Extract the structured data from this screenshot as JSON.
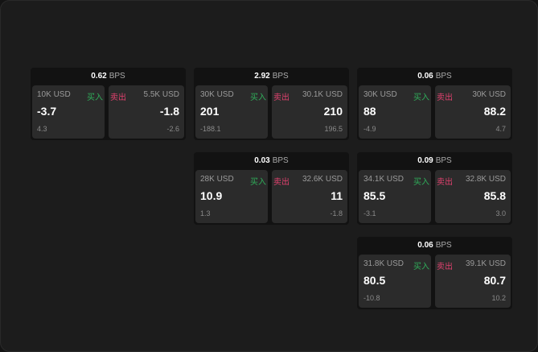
{
  "unit": "BPS",
  "buy_label": "买入",
  "sell_label": "卖出",
  "colors": {
    "buy": "#2fae5a",
    "sell": "#e0416e",
    "background": "#1c1c1c"
  },
  "cards": [
    {
      "spread": "0.62",
      "buy": {
        "qty": "10K USD",
        "price": "-3.7",
        "change": "4.3"
      },
      "sell": {
        "qty": "5.5K USD",
        "price": "-1.8",
        "change": "-2.6"
      }
    },
    {
      "spread": "2.92",
      "buy": {
        "qty": "30K USD",
        "price": "201",
        "change": "-188.1"
      },
      "sell": {
        "qty": "30.1K USD",
        "price": "210",
        "change": "196.5"
      }
    },
    {
      "spread": "0.06",
      "buy": {
        "qty": "30K USD",
        "price": "88",
        "change": "-4.9"
      },
      "sell": {
        "qty": "30K USD",
        "price": "88.2",
        "change": "4.7"
      }
    },
    {
      "spread": "0.03",
      "buy": {
        "qty": "28K USD",
        "price": "10.9",
        "change": "1.3"
      },
      "sell": {
        "qty": "32.6K USD",
        "price": "11",
        "change": "-1.8"
      }
    },
    {
      "spread": "0.09",
      "buy": {
        "qty": "34.1K USD",
        "price": "85.5",
        "change": "-3.1"
      },
      "sell": {
        "qty": "32.8K USD",
        "price": "85.8",
        "change": "3.0"
      }
    },
    {
      "spread": "0.06",
      "buy": {
        "qty": "31.8K USD",
        "price": "80.5",
        "change": "-10.8"
      },
      "sell": {
        "qty": "39.1K USD",
        "price": "80.7",
        "change": "10.2"
      }
    }
  ]
}
